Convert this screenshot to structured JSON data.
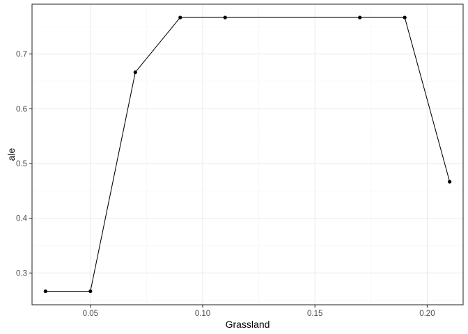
{
  "chart_data": {
    "type": "line",
    "title": "",
    "xlabel": "Grassland",
    "ylabel": "ale",
    "xlim": [
      0.024,
      0.216
    ],
    "ylim": [
      0.242,
      0.791
    ],
    "x_ticks": [
      0.05,
      0.1,
      0.15,
      0.2
    ],
    "x_tick_labels": [
      "0.05",
      "0.10",
      "0.15",
      "0.20"
    ],
    "y_ticks": [
      0.3,
      0.4,
      0.5,
      0.6,
      0.7
    ],
    "y_tick_labels": [
      "0.3",
      "0.4",
      "0.5",
      "0.6",
      "0.7"
    ],
    "grid": true,
    "legend": "none",
    "series": [
      {
        "x": [
          0.03,
          0.05,
          0.07,
          0.09,
          0.11,
          0.17,
          0.19,
          0.21
        ],
        "y": [
          0.2667,
          0.2667,
          0.6667,
          0.7667,
          0.7667,
          0.7667,
          0.7667,
          0.4667
        ],
        "color": "#000000"
      }
    ],
    "colors": {
      "panel_border": "#333333",
      "grid_major": "#ebebeb",
      "grid_minor": "#f5f5f5",
      "tick_text": "#4d4d4d"
    }
  }
}
